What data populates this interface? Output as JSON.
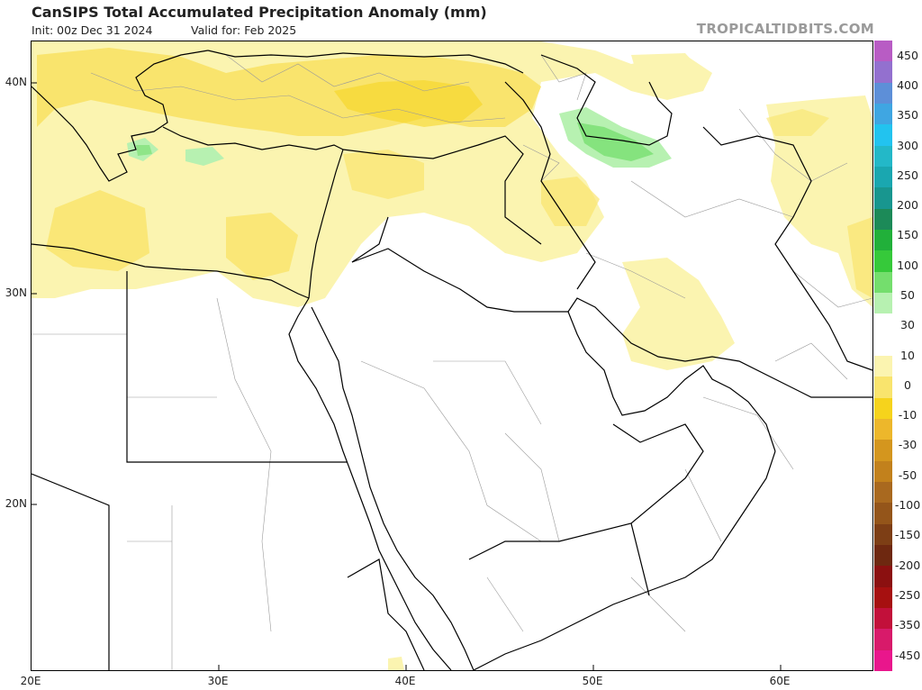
{
  "header": {
    "title": "CanSIPS Total Accumulated Precipitation Anomaly (mm)",
    "init": "Init: 00z Dec 31 2024",
    "valid": "Valid for: Feb 2025",
    "source": "TROPICALTIDBITS.COM"
  },
  "map": {
    "lat_labels": [
      "40N",
      "30N",
      "20N"
    ],
    "lon_labels": [
      "20E",
      "30E",
      "40E",
      "50E",
      "60E"
    ],
    "colors": {
      "border": "#000000",
      "province": "#9a9a9a"
    }
  },
  "colorbar": {
    "labels": [
      "450",
      "400",
      "350",
      "300",
      "250",
      "200",
      "150",
      "100",
      "50",
      "30",
      "10",
      "0",
      "-10",
      "-30",
      "-50",
      "-100",
      "-150",
      "-200",
      "-250",
      "-350",
      "-450"
    ],
    "colors": [
      "#b85cc4",
      "#9370cf",
      "#5d8fd8",
      "#3fa6e2",
      "#22c3ef",
      "#23b8c8",
      "#1aa7b0",
      "#18968f",
      "#1c8a58",
      "#21b03a",
      "#36c93a",
      "#74de6d",
      "#b7f1b1",
      "#ffffff",
      "#ffffff",
      "#fbf4b0",
      "#f9e46d",
      "#f6d31c",
      "#edb72b",
      "#d4961e",
      "#c2811c",
      "#a9691f",
      "#94551a",
      "#7d3e15",
      "#6e2810",
      "#8b1010",
      "#a61010",
      "#c2103a",
      "#d81a6a",
      "#e9168c"
    ]
  }
}
